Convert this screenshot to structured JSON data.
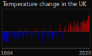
{
  "chart_data": {
    "type": "bar",
    "title": "Temperature change in the UK",
    "x": [
      1884,
      1885,
      1886,
      1887,
      1888,
      1889,
      1890,
      1891,
      1892,
      1893,
      1894,
      1895,
      1896,
      1897,
      1898,
      1899,
      1900,
      1901,
      1902,
      1903,
      1904,
      1905,
      1906,
      1907,
      1908,
      1909,
      1910,
      1911,
      1912,
      1913,
      1914,
      1915,
      1916,
      1917,
      1918,
      1919,
      1920,
      1921,
      1922,
      1923,
      1924,
      1925,
      1926,
      1927,
      1928,
      1929,
      1930,
      1931,
      1932,
      1933,
      1934,
      1935,
      1936,
      1937,
      1938,
      1939,
      1940,
      1941,
      1942,
      1943,
      1944,
      1945,
      1946,
      1947,
      1948,
      1949,
      1950,
      1951,
      1952,
      1953,
      1954,
      1955,
      1956,
      1957,
      1958,
      1959,
      1960,
      1961,
      1962,
      1963,
      1964,
      1965,
      1966,
      1967,
      1968,
      1969,
      1970,
      1971,
      1972,
      1973,
      1974,
      1975,
      1976,
      1977,
      1978,
      1979,
      1980,
      1981,
      1982,
      1983,
      1984,
      1985,
      1986,
      1987,
      1988,
      1989,
      1990,
      1991,
      1992,
      1993,
      1994,
      1995,
      1996,
      1997,
      1998,
      1999,
      2000,
      2001,
      2002,
      2003,
      2004,
      2005,
      2006,
      2007,
      2008,
      2009,
      2010,
      2011,
      2012,
      2013,
      2014,
      2015,
      2016,
      2017,
      2018,
      2019,
      2020
    ],
    "values": [
      -0.63,
      -0.52,
      -0.87,
      -0.85,
      -0.47,
      -0.1,
      -0.92,
      -0.89,
      -0.95,
      -0.55,
      -0.31,
      -1.07,
      -0.13,
      -0.23,
      -0.43,
      -0.12,
      -0.25,
      -0.41,
      -0.71,
      -0.55,
      -0.43,
      -0.4,
      -0.13,
      -0.7,
      -0.55,
      -0.73,
      -0.07,
      0.22,
      -0.5,
      -0.44,
      -0.11,
      -0.31,
      -0.5,
      -0.99,
      -0.38,
      0.12,
      -0.05,
      0.31,
      -0.41,
      -0.58,
      -0.54,
      -0.11,
      -0.05,
      -0.18,
      -0.22,
      -0.87,
      -0.04,
      -0.42,
      -0.08,
      -0.04,
      0.31,
      -0.18,
      -0.3,
      -0.05,
      0.36,
      -0.07,
      -0.77,
      -0.18,
      0.05,
      -0.07,
      0.12,
      -0.25,
      -0.4,
      -1.05,
      -0.16,
      0.24,
      -0.47,
      -0.18,
      -0.15,
      -0.04,
      -0.51,
      -0.55,
      -0.56,
      0.03,
      -0.34,
      0.31,
      -0.32,
      0.01,
      -0.56,
      -0.75,
      -0.27,
      -0.49,
      -0.36,
      0.1,
      -0.27,
      -0.38,
      -0.2,
      0.01,
      -0.1,
      0.27,
      -0.02,
      0.02,
      0.63,
      0.04,
      -0.18,
      -0.71,
      -0.09,
      0.2,
      0.34,
      0.56,
      0.13,
      -0.26,
      0.01,
      0.06,
      0.51,
      0.61,
      -0.05,
      0.79,
      0.36,
      0.52,
      0.4,
      0.2,
      0.57,
      0.88,
      0.43,
      0.66,
      0.71,
      0.45,
      0.73,
      0.96,
      0.38,
      0.51,
      -0.49,
      0.37,
      0.84,
      0.86,
      0.87,
      0.75,
      0.92,
      1.0,
      0.77,
      0.68,
      0.97,
      0.69,
      0.97,
      1.28,
      1.44
    ],
    "colors": [
      "#0404aa",
      "#050599",
      "#0202cd",
      "#0202ca",
      "#060692",
      "#09095b",
      "#0202d5",
      "#0202d0",
      "#0202d9",
      "#05059e",
      "#07077a",
      "#0101eb",
      "#09095f",
      "#08086e",
      "#06068c",
      "#09095e",
      "#080871",
      "#060689",
      "#0404b6",
      "#05059e",
      "#06068c",
      "#060688",
      "#09095f",
      "#0404b4",
      "#05059e",
      "#0303b9",
      "#090956",
      "#710a0a",
      "#050596",
      "#06068d",
      "#09095c",
      "#07077a",
      "#050596",
      "#0101df",
      "#060685",
      "#660b0b",
      "#090953",
      "#7b0a0a",
      "#060689",
      "#0505a2",
      "#05059c",
      "#09095c",
      "#090953",
      "#080867",
      "#08086d",
      "#0202cd",
      "#090952",
      "#06068a",
      "#090958",
      "#090952",
      "#7b0a0a",
      "#080867",
      "#070779",
      "#090953",
      "#810909",
      "#090956",
      "#0303bf",
      "#080867",
      "#5e0c0c",
      "#090956",
      "#660b0b",
      "#080871",
      "#060688",
      "#0101e8",
      "#080864",
      "#730a0a",
      "#060692",
      "#080867",
      "#080862",
      "#090952",
      "#050598",
      "#05059e",
      "#05059f",
      "#5c0c0c",
      "#07077f",
      "#7b0a0a",
      "#07077c",
      "#5a0c0c",
      "#05059f",
      "#0303bc",
      "#070774",
      "#060695",
      "#070782",
      "#640b0b",
      "#070774",
      "#060685",
      "#08086a",
      "#5a0c0c",
      "#09095b",
      "#770a0a",
      "#0a0a4f",
      "#5b0c0c",
      "#9e0707",
      "#5d0c0c",
      "#080867",
      "#0404b6",
      "#090959",
      "#6f0b0b",
      "#7e0909",
      "#970707",
      "#670b0b",
      "#070773",
      "#5a0c0c",
      "#5f0c0c",
      "#910808",
      "#9c0707",
      "#090953",
      "#b00606",
      "#810909",
      "#920808",
      "#850909",
      "#6f0b0b",
      "#980707",
      "#ba0505",
      "#880909",
      "#a20707",
      "#a70606",
      "#8a0808",
      "#a90606",
      "#c30404",
      "#830909",
      "#910808",
      "#060695",
      "#820909",
      "#b60505",
      "#b80505",
      "#b90505",
      "#ac0606",
      "#be0404",
      "#c70404",
      "#ae0606",
      "#a40606",
      "#c40404",
      "#a50606",
      "#c40404",
      "#e60101",
      "#f80000"
    ],
    "xlim": [
      1883,
      2022
    ],
    "ylim": [
      -1.5,
      2.0
    ],
    "xticks": [
      1884,
      2020
    ],
    "tick_labels": "x",
    "grid": false
  }
}
